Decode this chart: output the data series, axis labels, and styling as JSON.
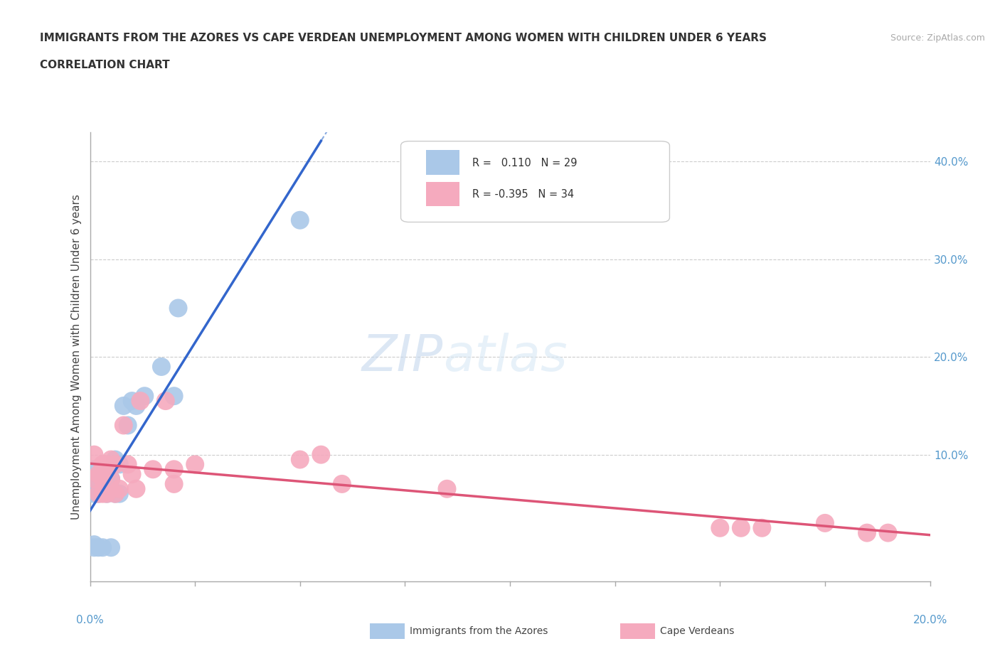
{
  "title_line1": "IMMIGRANTS FROM THE AZORES VS CAPE VERDEAN UNEMPLOYMENT AMONG WOMEN WITH CHILDREN UNDER 6 YEARS",
  "title_line2": "CORRELATION CHART",
  "source": "Source: ZipAtlas.com",
  "ylabel": "Unemployment Among Women with Children Under 6 years",
  "right_yticks": [
    "40.0%",
    "30.0%",
    "20.0%",
    "10.0%"
  ],
  "right_ytick_vals": [
    0.4,
    0.3,
    0.2,
    0.1
  ],
  "xmin": 0.0,
  "xmax": 0.2,
  "ymin": -0.03,
  "ymax": 0.43,
  "azores_R": 0.11,
  "azores_N": 29,
  "cape_verde_R": -0.395,
  "cape_verde_N": 34,
  "azores_color": "#aac8e8",
  "cape_verde_color": "#f5aabe",
  "azores_line_color": "#3366cc",
  "azores_dashed_color": "#88aae0",
  "cape_verde_line_color": "#dd5577",
  "background_color": "#ffffff",
  "watermark": "ZIPatlas",
  "azores_x": [
    0.001,
    0.001,
    0.001,
    0.001,
    0.001,
    0.002,
    0.002,
    0.002,
    0.003,
    0.003,
    0.003,
    0.004,
    0.004,
    0.005,
    0.005,
    0.005,
    0.006,
    0.006,
    0.007,
    0.007,
    0.008,
    0.009,
    0.01,
    0.011,
    0.013,
    0.017,
    0.02,
    0.021,
    0.05
  ],
  "azores_y": [
    0.005,
    0.008,
    0.06,
    0.075,
    0.085,
    0.005,
    0.06,
    0.075,
    0.005,
    0.07,
    0.08,
    0.06,
    0.08,
    0.005,
    0.065,
    0.075,
    0.06,
    0.095,
    0.06,
    0.09,
    0.15,
    0.13,
    0.155,
    0.15,
    0.16,
    0.19,
    0.16,
    0.25,
    0.34
  ],
  "cape_verde_x": [
    0.001,
    0.001,
    0.002,
    0.002,
    0.003,
    0.003,
    0.003,
    0.004,
    0.004,
    0.005,
    0.005,
    0.006,
    0.006,
    0.007,
    0.008,
    0.009,
    0.01,
    0.011,
    0.012,
    0.015,
    0.018,
    0.02,
    0.02,
    0.025,
    0.05,
    0.055,
    0.06,
    0.085,
    0.15,
    0.155,
    0.16,
    0.175,
    0.185,
    0.19
  ],
  "cape_verde_y": [
    0.075,
    0.1,
    0.06,
    0.08,
    0.06,
    0.075,
    0.09,
    0.06,
    0.09,
    0.075,
    0.095,
    0.06,
    0.09,
    0.065,
    0.13,
    0.09,
    0.08,
    0.065,
    0.155,
    0.085,
    0.155,
    0.07,
    0.085,
    0.09,
    0.095,
    0.1,
    0.07,
    0.065,
    0.025,
    0.025,
    0.025,
    0.03,
    0.02,
    0.02
  ]
}
